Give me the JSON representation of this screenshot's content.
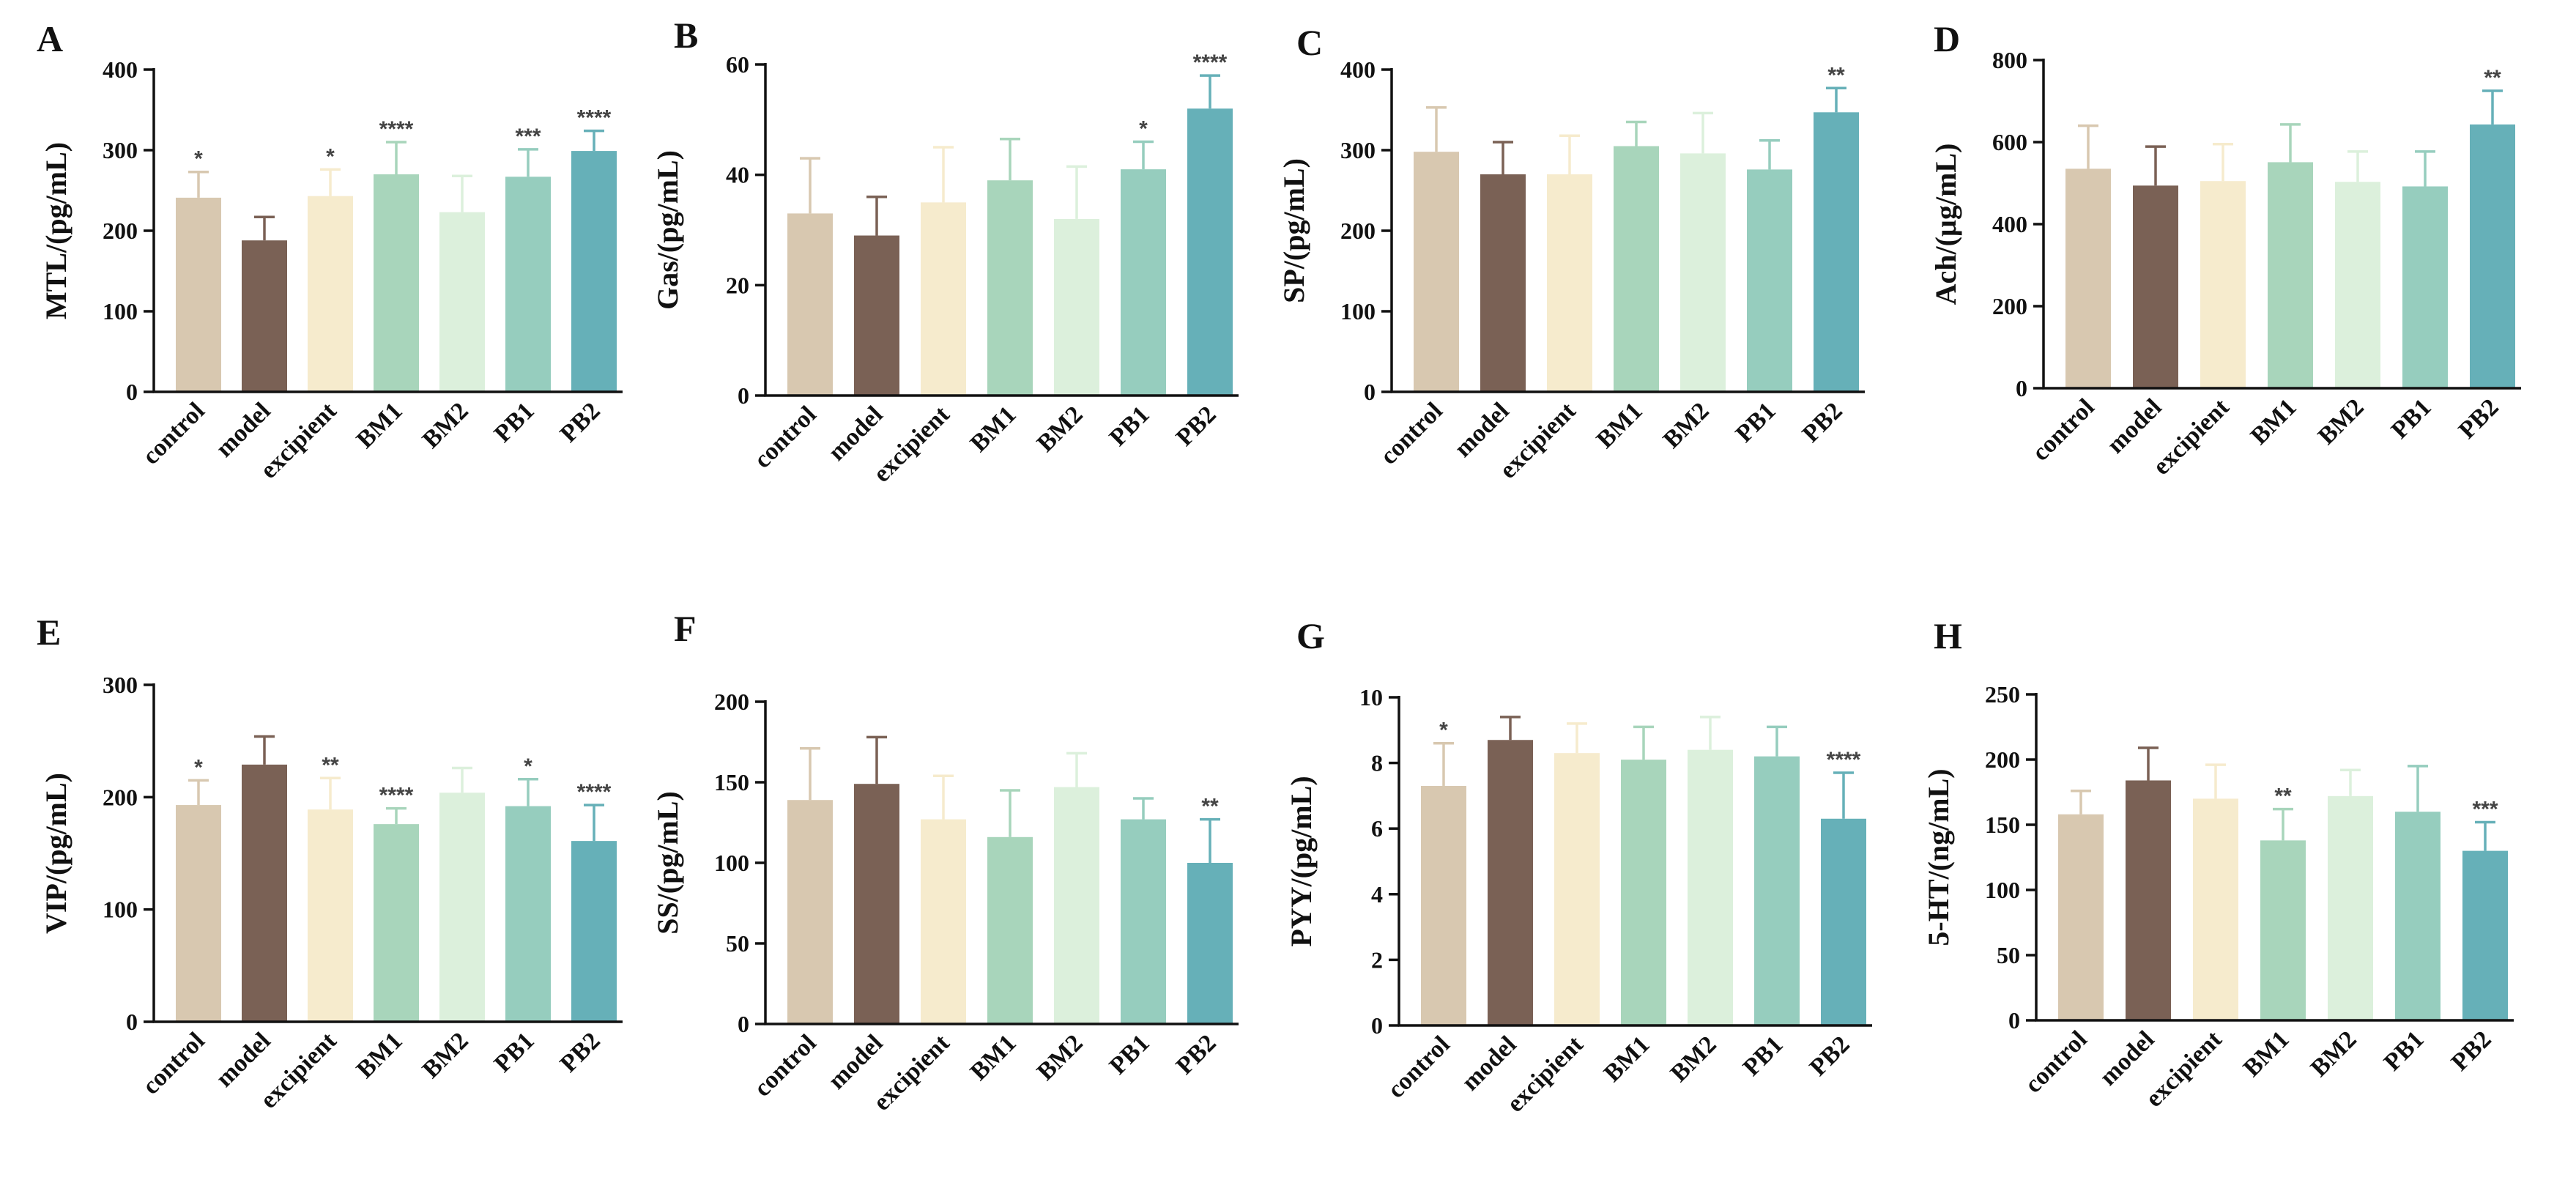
{
  "figure": {
    "categories": [
      "control",
      "model",
      "excipient",
      "BM1",
      "BM2",
      "PB1",
      "PB2"
    ],
    "colors": [
      "#d8c8b0",
      "#7a6155",
      "#f6ebcd",
      "#a8d5bb",
      "#dcf0dc",
      "#96cdbe",
      "#66b0b8"
    ]
  },
  "chart_data": [
    {
      "type": "bar",
      "panel": "A",
      "ylabel": "MTL/(pg/mL)",
      "categories": [
        "control",
        "model",
        "excipient",
        "BM1",
        "BM2",
        "PB1",
        "PB2"
      ],
      "values": [
        241,
        188,
        243,
        270,
        223,
        267,
        299
      ],
      "errors": [
        32,
        29,
        33,
        40,
        45,
        34,
        25
      ],
      "significance": [
        "*",
        "",
        "*",
        "****",
        "",
        "***",
        "****"
      ],
      "ylim": [
        0,
        400
      ],
      "yticks": [
        0,
        100,
        200,
        300,
        400
      ]
    },
    {
      "type": "bar",
      "panel": "B",
      "ylabel": "Gas/(pg/mL)",
      "categories": [
        "control",
        "model",
        "excipient",
        "BM1",
        "BM2",
        "PB1",
        "PB2"
      ],
      "values": [
        33,
        29,
        35,
        39,
        32,
        41,
        52
      ],
      "errors": [
        10,
        7,
        10,
        7.5,
        9.5,
        5,
        6
      ],
      "significance": [
        "",
        "",
        "",
        "",
        "",
        "*",
        "****"
      ],
      "ylim": [
        0,
        60
      ],
      "yticks": [
        0,
        20,
        40,
        60
      ]
    },
    {
      "type": "bar",
      "panel": "C",
      "ylabel": "SP/(pg/mL)",
      "categories": [
        "control",
        "model",
        "excipient",
        "BM1",
        "BM2",
        "PB1",
        "PB2"
      ],
      "values": [
        298,
        270,
        270,
        305,
        296,
        276,
        347
      ],
      "errors": [
        55,
        40,
        48,
        30,
        50,
        36,
        30
      ],
      "significance": [
        "",
        "",
        "",
        "",
        "",
        "",
        "**"
      ],
      "ylim": [
        0,
        400
      ],
      "yticks": [
        0,
        100,
        200,
        300,
        400
      ]
    },
    {
      "type": "bar",
      "panel": "D",
      "ylabel": "Ach/(µg/mL)",
      "categories": [
        "control",
        "model",
        "excipient",
        "BM1",
        "BM2",
        "PB1",
        "PB2"
      ],
      "values": [
        535,
        494,
        505,
        551,
        503,
        492,
        643
      ],
      "errors": [
        105,
        95,
        90,
        92,
        74,
        85,
        82
      ],
      "significance": [
        "",
        "",
        "",
        "",
        "",
        "",
        "**"
      ],
      "ylim": [
        0,
        800
      ],
      "yticks": [
        0,
        200,
        400,
        600,
        800
      ]
    },
    {
      "type": "bar",
      "panel": "E",
      "ylabel": "VIP/(pg/mL)",
      "categories": [
        "control",
        "model",
        "excipient",
        "BM1",
        "BM2",
        "PB1",
        "PB2"
      ],
      "values": [
        193,
        229,
        189,
        176,
        204,
        192,
        161
      ],
      "errors": [
        22,
        25,
        28,
        14,
        22,
        24,
        32
      ],
      "significance": [
        "*",
        "",
        "**",
        "****",
        "",
        "*",
        "****"
      ],
      "ylim": [
        0,
        300
      ],
      "yticks": [
        0,
        100,
        200,
        300
      ]
    },
    {
      "type": "bar",
      "panel": "F",
      "ylabel": "SS/(pg/mL)",
      "categories": [
        "control",
        "model",
        "excipient",
        "BM1",
        "BM2",
        "PB1",
        "PB2"
      ],
      "values": [
        139,
        149,
        127,
        116,
        147,
        127,
        100
      ],
      "errors": [
        32,
        29,
        27,
        29,
        21,
        13,
        27
      ],
      "significance": [
        "",
        "",
        "",
        "",
        "",
        "",
        "**"
      ],
      "ylim": [
        0,
        200
      ],
      "yticks": [
        0,
        50,
        100,
        150,
        200
      ]
    },
    {
      "type": "bar",
      "panel": "G",
      "ylabel": "PYY/(pg/mL)",
      "categories": [
        "control",
        "model",
        "excipient",
        "BM1",
        "BM2",
        "PB1",
        "PB2"
      ],
      "values": [
        7.3,
        8.7,
        8.3,
        8.1,
        8.4,
        8.2,
        6.3
      ],
      "errors": [
        1.3,
        0.7,
        0.9,
        1.0,
        1.0,
        0.9,
        1.4
      ],
      "significance": [
        "*",
        "",
        "",
        "",
        "",
        "",
        "****"
      ],
      "ylim": [
        0,
        10
      ],
      "yticks": [
        0,
        2,
        4,
        6,
        8,
        10
      ]
    },
    {
      "type": "bar",
      "panel": "H",
      "ylabel": "5-HT/(ng/mL)",
      "categories": [
        "control",
        "model",
        "excipient",
        "BM1",
        "BM2",
        "PB1",
        "PB2"
      ],
      "values": [
        158,
        184,
        170,
        138,
        172,
        160,
        130
      ],
      "errors": [
        18,
        25,
        26,
        24,
        20,
        35,
        22
      ],
      "significance": [
        "",
        "",
        "",
        "**",
        "",
        "",
        "***"
      ],
      "ylim": [
        0,
        250
      ],
      "yticks": [
        0,
        50,
        100,
        150,
        200,
        250
      ]
    }
  ]
}
